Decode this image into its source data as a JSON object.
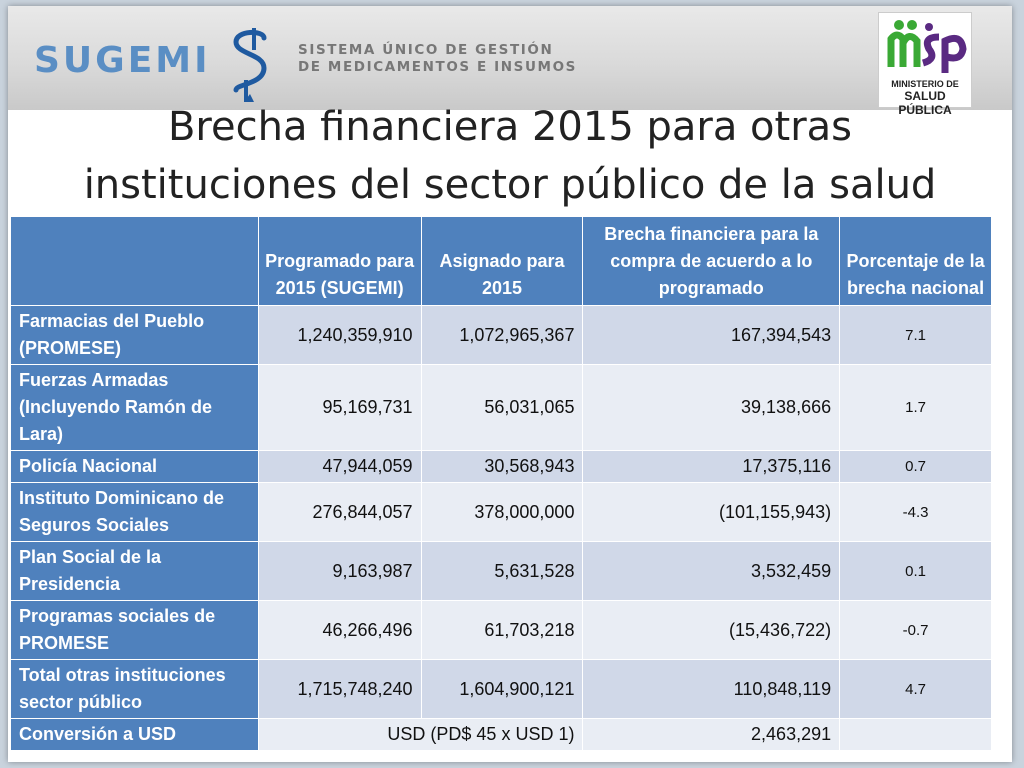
{
  "header": {
    "logo_text": "SUGEMI",
    "tagline_line1": "SISTEMA ÚNICO DE GESTIÓN",
    "tagline_line2": "DE MEDICAMENTOS E INSUMOS",
    "ministry_logo_text": "msp",
    "ministry_line1": "MINISTERIO DE",
    "ministry_line2": "SALUD PÚBLICA",
    "colors": {
      "sugemi_blue": "#5a8ec4",
      "msp_green": "#3aa935",
      "msp_purple": "#5a2a82"
    }
  },
  "title_line1": "Brecha financiera 2015 para otras",
  "title_line2": "instituciones del sector público de la salud",
  "table": {
    "header_color": "#4f81bd",
    "columns": [
      "",
      "Programado para 2015 (SUGEMI)",
      "Asignado para 2015",
      "Brecha financiera para la compra de acuerdo a lo programado",
      "Porcentaje de la brecha nacional"
    ],
    "rows": [
      {
        "label": "Farmacias del Pueblo (PROMESE)",
        "programado": "1,240,359,910",
        "asignado": "1,072,965,367",
        "brecha": "167,394,543",
        "porcentaje": "7.1"
      },
      {
        "label": "Fuerzas Armadas (Incluyendo Ramón de Lara)",
        "programado": "95,169,731",
        "asignado": "56,031,065",
        "brecha": "39,138,666",
        "porcentaje": "1.7"
      },
      {
        "label": "Policía Nacional",
        "programado": "47,944,059",
        "asignado": "30,568,943",
        "brecha": "17,375,116",
        "porcentaje": "0.7"
      },
      {
        "label": "Instituto Dominicano de Seguros Sociales",
        "programado": "276,844,057",
        "asignado": "378,000,000",
        "brecha": "(101,155,943)",
        "porcentaje": "-4.3"
      },
      {
        "label": "Plan Social de la Presidencia",
        "programado": "9,163,987",
        "asignado": "5,631,528",
        "brecha": "3,532,459",
        "porcentaje": "0.1"
      },
      {
        "label": "Programas sociales de PROMESE",
        "programado": "46,266,496",
        "asignado": "61,703,218",
        "brecha": "(15,436,722)",
        "porcentaje": "-0.7"
      },
      {
        "label": "Total otras instituciones sector público",
        "programado": "1,715,748,240",
        "asignado": "1,604,900,121",
        "brecha": "110,848,119",
        "porcentaje": "4.7"
      }
    ],
    "conversion": {
      "label": "Conversión a USD",
      "rate": "USD (PD$ 45 x USD 1)",
      "value": "2,463,291",
      "porcentaje": ""
    }
  }
}
